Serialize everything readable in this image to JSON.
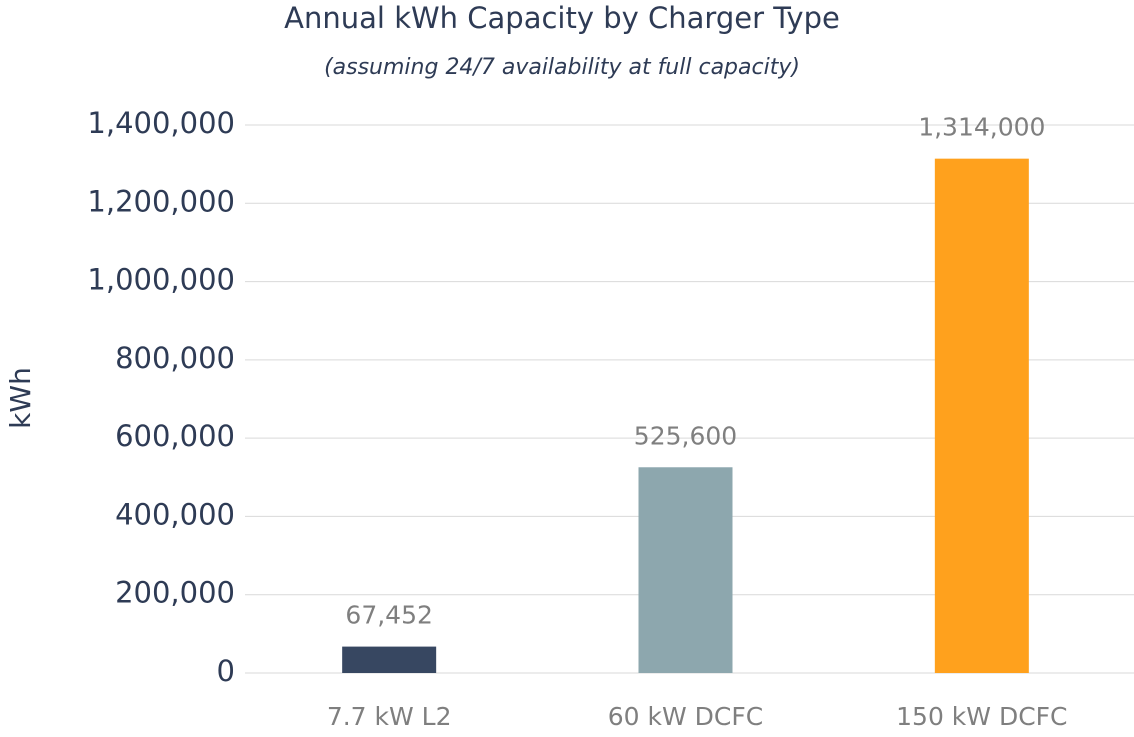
{
  "chart_data": {
    "type": "bar",
    "title": "Annual kWh Capacity by Charger Type",
    "subtitle": "(assuming 24/7 availability at full capacity)",
    "ylabel": "kWh",
    "categories": [
      "7.7 kW L2",
      "60 kW DCFC",
      "150 kW DCFC"
    ],
    "values": [
      67452,
      525600,
      1314000
    ],
    "value_labels": [
      "67,452",
      "525,600",
      "1,314,000"
    ],
    "colors": [
      "#374761",
      "#8da7ae",
      "#ffa11d"
    ],
    "ylim": [
      0,
      1400000
    ],
    "yticks": [
      0,
      {
        "value": 200000,
        "label": "200,000"
      },
      {
        "value": 400000,
        "label": "400,000"
      },
      {
        "value": 600000,
        "label": "600,000"
      },
      {
        "value": 800000,
        "label": "800,000"
      },
      {
        "value": 1000000,
        "label": "1,000,000"
      },
      {
        "value": 1200000,
        "label": "1,200,000"
      },
      {
        "value": 1400000,
        "label": "1,400,000"
      }
    ],
    "grid": true
  }
}
